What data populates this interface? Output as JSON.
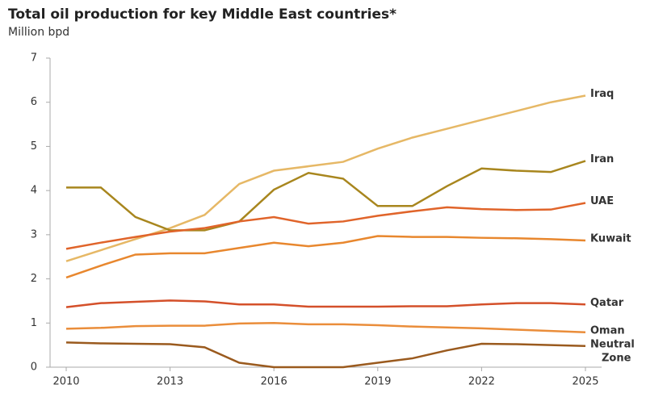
{
  "chart_data": {
    "type": "line",
    "title": "Total oil production for key Middle East countries*",
    "subtitle": "Million bpd",
    "x": [
      2010,
      2011,
      2012,
      2013,
      2014,
      2015,
      2016,
      2017,
      2018,
      2019,
      2020,
      2021,
      2022,
      2023,
      2024,
      2025
    ],
    "xlim": [
      2010,
      2025
    ],
    "xticks": [
      2010,
      2013,
      2016,
      2019,
      2022,
      2025
    ],
    "ylim": [
      0,
      7
    ],
    "yticks": [
      0,
      1,
      2,
      3,
      4,
      5,
      6,
      7
    ],
    "grid": false,
    "series": [
      {
        "name": "Iraq",
        "color": "#e6b866",
        "values": [
          2.4,
          2.65,
          2.9,
          3.15,
          3.45,
          4.15,
          4.45,
          4.55,
          4.65,
          4.95,
          5.2,
          5.4,
          5.6,
          5.8,
          6.0,
          6.15
        ]
      },
      {
        "name": "Iran",
        "color": "#a8861e",
        "values": [
          4.07,
          4.07,
          3.4,
          3.1,
          3.1,
          3.3,
          4.02,
          4.4,
          4.27,
          3.65,
          3.65,
          4.1,
          4.5,
          4.45,
          4.42,
          4.67
        ]
      },
      {
        "name": "UAE",
        "color": "#e0642a",
        "values": [
          2.68,
          2.82,
          2.95,
          3.07,
          3.15,
          3.3,
          3.4,
          3.25,
          3.3,
          3.43,
          3.53,
          3.62,
          3.58,
          3.56,
          3.57,
          3.72
        ]
      },
      {
        "name": "Kuwait",
        "color": "#e8872e",
        "values": [
          2.03,
          2.3,
          2.55,
          2.58,
          2.58,
          2.7,
          2.82,
          2.74,
          2.82,
          2.97,
          2.95,
          2.95,
          2.93,
          2.92,
          2.9,
          2.87
        ]
      },
      {
        "name": "Qatar",
        "color": "#d4502a",
        "values": [
          1.36,
          1.45,
          1.48,
          1.51,
          1.49,
          1.42,
          1.42,
          1.37,
          1.37,
          1.37,
          1.38,
          1.38,
          1.42,
          1.45,
          1.45,
          1.42
        ]
      },
      {
        "name": "Oman",
        "color": "#ea8d3a",
        "values": [
          0.87,
          0.89,
          0.93,
          0.94,
          0.94,
          0.99,
          1.0,
          0.97,
          0.97,
          0.95,
          0.92,
          0.9,
          0.88,
          0.85,
          0.82,
          0.79
        ]
      },
      {
        "name": "Neutral Zone",
        "color": "#9a5a1e",
        "values": [
          0.56,
          0.54,
          0.53,
          0.52,
          0.45,
          0.1,
          0,
          0,
          0,
          0.1,
          0.2,
          0.38,
          0.53,
          0.52,
          0.5,
          0.48
        ]
      }
    ]
  }
}
